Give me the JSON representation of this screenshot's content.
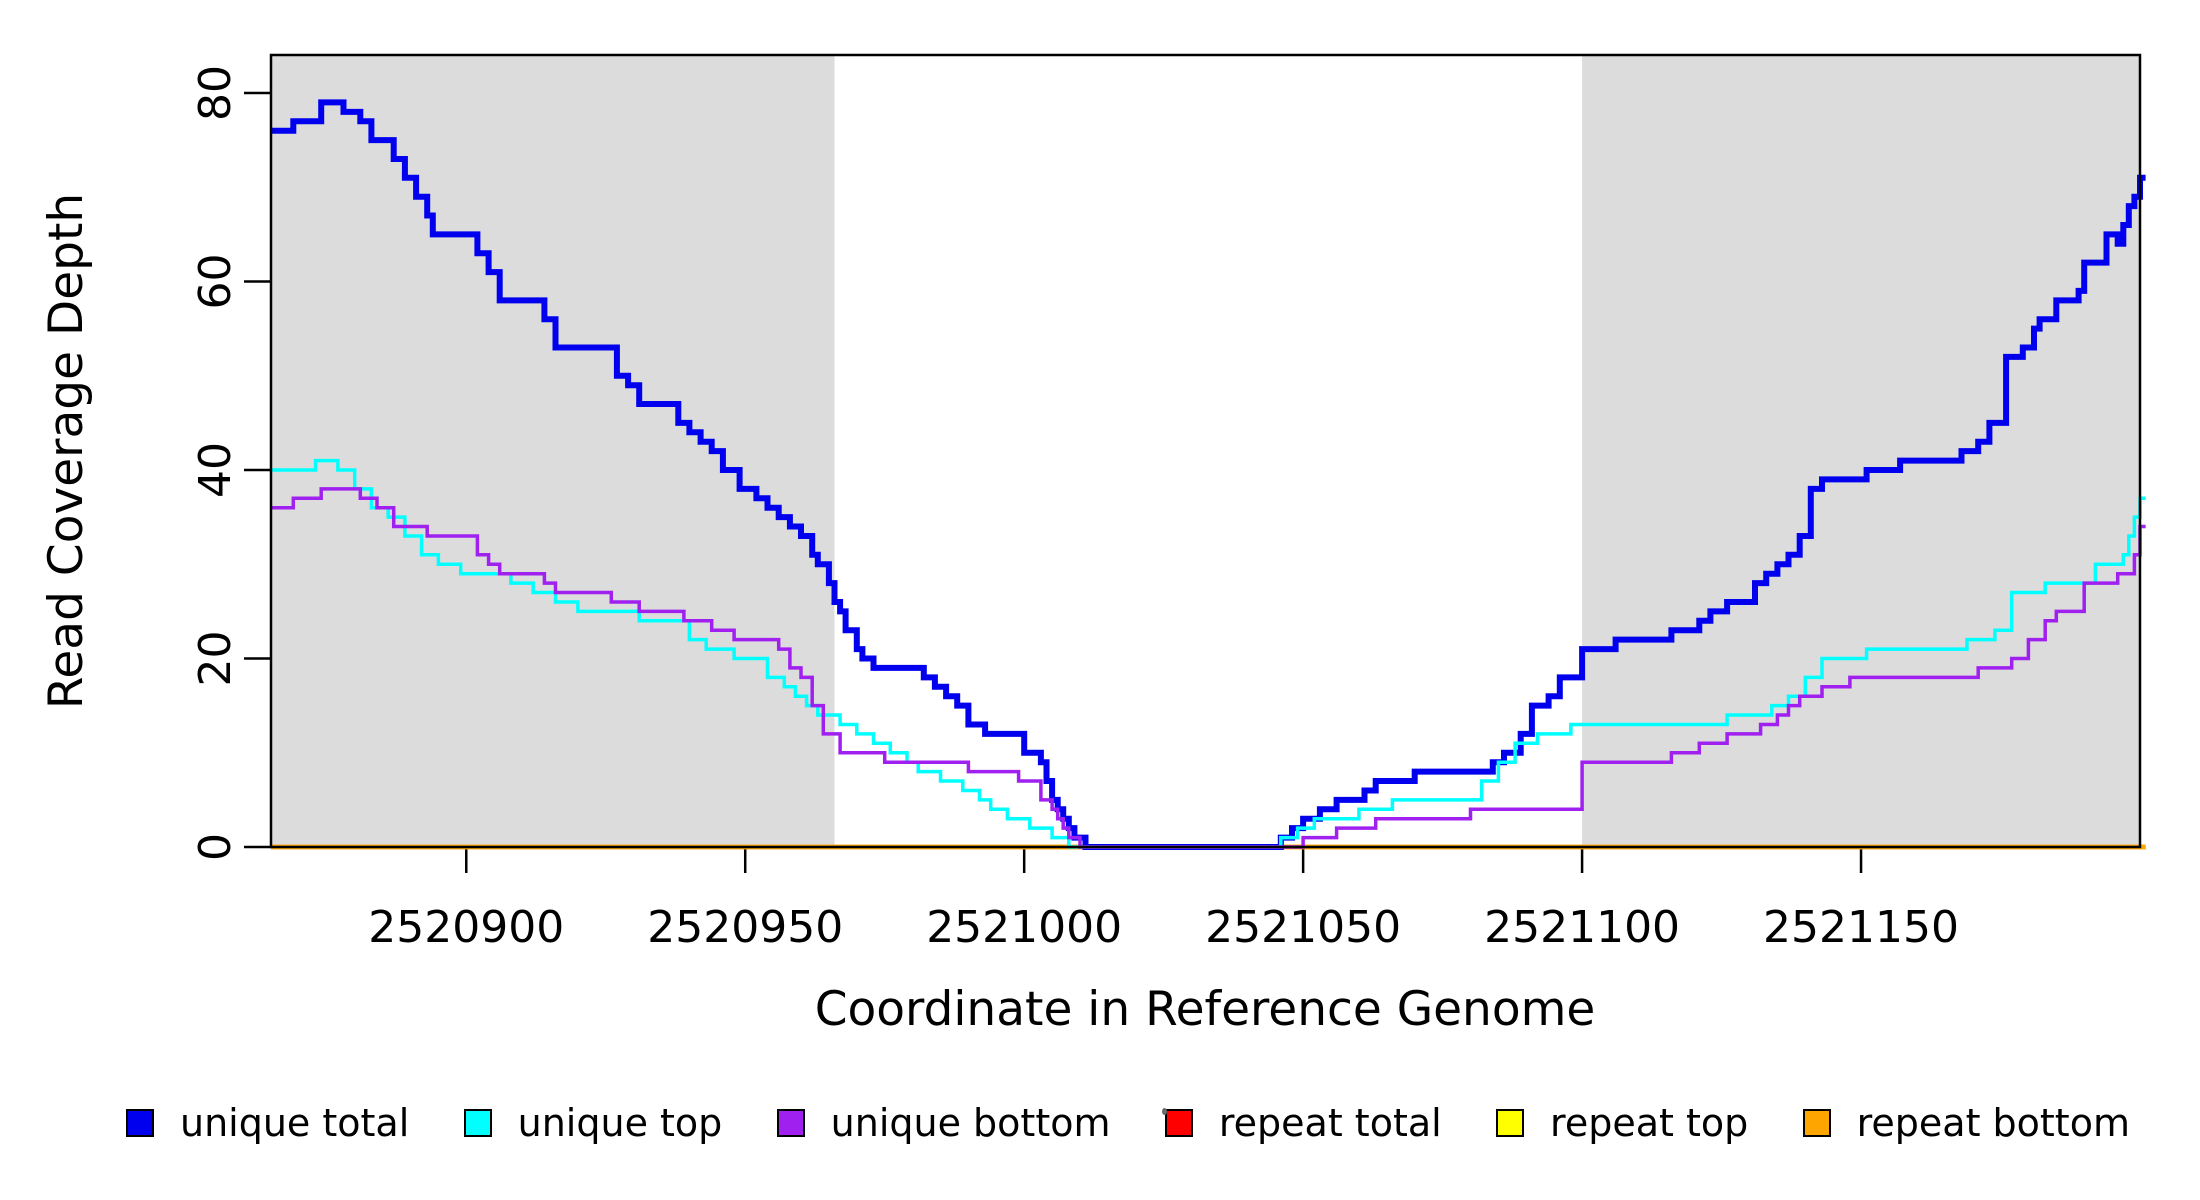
{
  "chart_data": {
    "type": "line",
    "subtype": "step",
    "title": "",
    "xlabel": "Coordinate in Reference Genome",
    "ylabel": "Read Coverage Depth",
    "xlim": [
      2520865,
      2521200
    ],
    "ylim": [
      0,
      84
    ],
    "x_ticks": [
      2520900,
      2520950,
      2521000,
      2521050,
      2521100,
      2521150
    ],
    "x_tick_labels": [
      "2520900",
      "2520950",
      "2521000",
      "2521050",
      "2521100",
      "2521150"
    ],
    "y_ticks": [
      0,
      20,
      40,
      60,
      80
    ],
    "y_tick_labels": [
      "0",
      "20",
      "40",
      "60",
      "80"
    ],
    "grid": false,
    "background_color": "#ffffff",
    "shaded_region_color": "#dcdcdc",
    "shaded_regions": [
      {
        "name": "left-repeat-region",
        "x0": 2520865,
        "x1": 2520966
      },
      {
        "name": "right-repeat-region",
        "x0": 2521100,
        "x1": 2521200
      }
    ],
    "series": [
      {
        "name": "repeat total",
        "color": "#ff0000",
        "width": 4.5,
        "points": [
          [
            2520865,
            0
          ],
          [
            2521201,
            0
          ]
        ]
      },
      {
        "name": "repeat top",
        "color": "#ffff00",
        "width": 4.5,
        "points": [
          [
            2520865,
            0
          ],
          [
            2521201,
            0
          ]
        ]
      },
      {
        "name": "repeat bottom",
        "color": "#ffa500",
        "width": 4.5,
        "points": [
          [
            2520865,
            0
          ],
          [
            2521201,
            0
          ]
        ]
      },
      {
        "name": "unique total",
        "color": "#0000ee",
        "width": 6,
        "points": [
          [
            2520865,
            76
          ],
          [
            2520869,
            77
          ],
          [
            2520874,
            79
          ],
          [
            2520878,
            78
          ],
          [
            2520881,
            77
          ],
          [
            2520883,
            75
          ],
          [
            2520887,
            73
          ],
          [
            2520889,
            71
          ],
          [
            2520891,
            69
          ],
          [
            2520893,
            67
          ],
          [
            2520894,
            65
          ],
          [
            2520902,
            63
          ],
          [
            2520904,
            61
          ],
          [
            2520906,
            58
          ],
          [
            2520914,
            56
          ],
          [
            2520916,
            53
          ],
          [
            2520927,
            50
          ],
          [
            2520929,
            49
          ],
          [
            2520931,
            47
          ],
          [
            2520938,
            45
          ],
          [
            2520940,
            44
          ],
          [
            2520942,
            43
          ],
          [
            2520944,
            42
          ],
          [
            2520946,
            40
          ],
          [
            2520949,
            38
          ],
          [
            2520952,
            37
          ],
          [
            2520954,
            36
          ],
          [
            2520956,
            35
          ],
          [
            2520958,
            34
          ],
          [
            2520960,
            33
          ],
          [
            2520962,
            31
          ],
          [
            2520963,
            30
          ],
          [
            2520965,
            28
          ],
          [
            2520966,
            26
          ],
          [
            2520967,
            25
          ],
          [
            2520968,
            23
          ],
          [
            2520970,
            21
          ],
          [
            2520971,
            20
          ],
          [
            2520973,
            19
          ],
          [
            2520982,
            18
          ],
          [
            2520984,
            17
          ],
          [
            2520986,
            16
          ],
          [
            2520988,
            15
          ],
          [
            2520990,
            13
          ],
          [
            2520993,
            12
          ],
          [
            2521000,
            10
          ],
          [
            2521003,
            9
          ],
          [
            2521004,
            7
          ],
          [
            2521005,
            5
          ],
          [
            2521006,
            4
          ],
          [
            2521007,
            3
          ],
          [
            2521008,
            2
          ],
          [
            2521009,
            1
          ],
          [
            2521011,
            0
          ],
          [
            2521046,
            1
          ],
          [
            2521048,
            2
          ],
          [
            2521050,
            3
          ],
          [
            2521053,
            4
          ],
          [
            2521056,
            5
          ],
          [
            2521061,
            6
          ],
          [
            2521063,
            7
          ],
          [
            2521070,
            8
          ],
          [
            2521084,
            9
          ],
          [
            2521086,
            10
          ],
          [
            2521089,
            12
          ],
          [
            2521091,
            15
          ],
          [
            2521094,
            16
          ],
          [
            2521096,
            18
          ],
          [
            2521100,
            21
          ],
          [
            2521106,
            22
          ],
          [
            2521116,
            23
          ],
          [
            2521121,
            24
          ],
          [
            2521123,
            25
          ],
          [
            2521126,
            26
          ],
          [
            2521131,
            28
          ],
          [
            2521133,
            29
          ],
          [
            2521135,
            30
          ],
          [
            2521137,
            31
          ],
          [
            2521139,
            33
          ],
          [
            2521141,
            38
          ],
          [
            2521143,
            39
          ],
          [
            2521151,
            40
          ],
          [
            2521157,
            41
          ],
          [
            2521168,
            42
          ],
          [
            2521171,
            43
          ],
          [
            2521173,
            45
          ],
          [
            2521176,
            52
          ],
          [
            2521179,
            53
          ],
          [
            2521181,
            55
          ],
          [
            2521182,
            56
          ],
          [
            2521185,
            58
          ],
          [
            2521189,
            59
          ],
          [
            2521190,
            62
          ],
          [
            2521194,
            65
          ],
          [
            2521196,
            64
          ],
          [
            2521197,
            66
          ],
          [
            2521198,
            68
          ],
          [
            2521199,
            69
          ],
          [
            2521200,
            71
          ],
          [
            2521201,
            71
          ]
        ]
      },
      {
        "name": "unique top",
        "color": "#00ffff",
        "width": 3.5,
        "points": [
          [
            2520865,
            40
          ],
          [
            2520873,
            41
          ],
          [
            2520877,
            40
          ],
          [
            2520880,
            38
          ],
          [
            2520883,
            36
          ],
          [
            2520886,
            35
          ],
          [
            2520889,
            33
          ],
          [
            2520892,
            31
          ],
          [
            2520895,
            30
          ],
          [
            2520899,
            29
          ],
          [
            2520908,
            28
          ],
          [
            2520912,
            27
          ],
          [
            2520916,
            26
          ],
          [
            2520920,
            25
          ],
          [
            2520931,
            24
          ],
          [
            2520940,
            22
          ],
          [
            2520943,
            21
          ],
          [
            2520948,
            20
          ],
          [
            2520954,
            18
          ],
          [
            2520957,
            17
          ],
          [
            2520959,
            16
          ],
          [
            2520961,
            15
          ],
          [
            2520963,
            14
          ],
          [
            2520967,
            13
          ],
          [
            2520970,
            12
          ],
          [
            2520973,
            11
          ],
          [
            2520976,
            10
          ],
          [
            2520979,
            9
          ],
          [
            2520981,
            8
          ],
          [
            2520985,
            7
          ],
          [
            2520989,
            6
          ],
          [
            2520992,
            5
          ],
          [
            2520994,
            4
          ],
          [
            2520997,
            3
          ],
          [
            2521001,
            2
          ],
          [
            2521005,
            1
          ],
          [
            2521008,
            0
          ],
          [
            2521046,
            1
          ],
          [
            2521049,
            2
          ],
          [
            2521052,
            3
          ],
          [
            2521060,
            4
          ],
          [
            2521066,
            5
          ],
          [
            2521082,
            7
          ],
          [
            2521085,
            9
          ],
          [
            2521088,
            11
          ],
          [
            2521092,
            12
          ],
          [
            2521098,
            13
          ],
          [
            2521126,
            14
          ],
          [
            2521134,
            15
          ],
          [
            2521137,
            16
          ],
          [
            2521140,
            18
          ],
          [
            2521143,
            20
          ],
          [
            2521151,
            21
          ],
          [
            2521169,
            22
          ],
          [
            2521174,
            23
          ],
          [
            2521177,
            27
          ],
          [
            2521183,
            28
          ],
          [
            2521192,
            30
          ],
          [
            2521197,
            31
          ],
          [
            2521198,
            33
          ],
          [
            2521199,
            35
          ],
          [
            2521200,
            37
          ],
          [
            2521201,
            37
          ]
        ]
      },
      {
        "name": "unique bottom",
        "color": "#a020f0",
        "width": 3.5,
        "points": [
          [
            2520865,
            36
          ],
          [
            2520869,
            37
          ],
          [
            2520874,
            38
          ],
          [
            2520881,
            37
          ],
          [
            2520884,
            36
          ],
          [
            2520887,
            34
          ],
          [
            2520893,
            33
          ],
          [
            2520902,
            31
          ],
          [
            2520904,
            30
          ],
          [
            2520906,
            29
          ],
          [
            2520914,
            28
          ],
          [
            2520916,
            27
          ],
          [
            2520926,
            26
          ],
          [
            2520931,
            25
          ],
          [
            2520939,
            24
          ],
          [
            2520944,
            23
          ],
          [
            2520948,
            22
          ],
          [
            2520956,
            21
          ],
          [
            2520958,
            19
          ],
          [
            2520960,
            18
          ],
          [
            2520962,
            15
          ],
          [
            2520964,
            12
          ],
          [
            2520967,
            10
          ],
          [
            2520975,
            9
          ],
          [
            2520990,
            8
          ],
          [
            2520999,
            7
          ],
          [
            2521003,
            5
          ],
          [
            2521005,
            4
          ],
          [
            2521006,
            3
          ],
          [
            2521007,
            2
          ],
          [
            2521008,
            1
          ],
          [
            2521010,
            0
          ],
          [
            2521050,
            1
          ],
          [
            2521056,
            2
          ],
          [
            2521063,
            3
          ],
          [
            2521080,
            4
          ],
          [
            2521100,
            9
          ],
          [
            2521116,
            10
          ],
          [
            2521121,
            11
          ],
          [
            2521126,
            12
          ],
          [
            2521132,
            13
          ],
          [
            2521135,
            14
          ],
          [
            2521137,
            15
          ],
          [
            2521139,
            16
          ],
          [
            2521143,
            17
          ],
          [
            2521148,
            18
          ],
          [
            2521171,
            19
          ],
          [
            2521177,
            20
          ],
          [
            2521180,
            22
          ],
          [
            2521183,
            24
          ],
          [
            2521185,
            25
          ],
          [
            2521190,
            28
          ],
          [
            2521196,
            29
          ],
          [
            2521199,
            31
          ],
          [
            2521200,
            34
          ],
          [
            2521201,
            34
          ]
        ]
      }
    ],
    "legend": {
      "position": "bottom",
      "entries": [
        {
          "label": "unique total",
          "color": "#0000ee"
        },
        {
          "label": "unique top",
          "color": "#00ffff"
        },
        {
          "label": "unique bottom",
          "color": "#a020f0"
        },
        {
          "label": "repeat total",
          "color": "#ff0000"
        },
        {
          "label": "repeat top",
          "color": "#ffff00"
        },
        {
          "label": "repeat bottom",
          "color": "#ffa500"
        }
      ]
    }
  }
}
